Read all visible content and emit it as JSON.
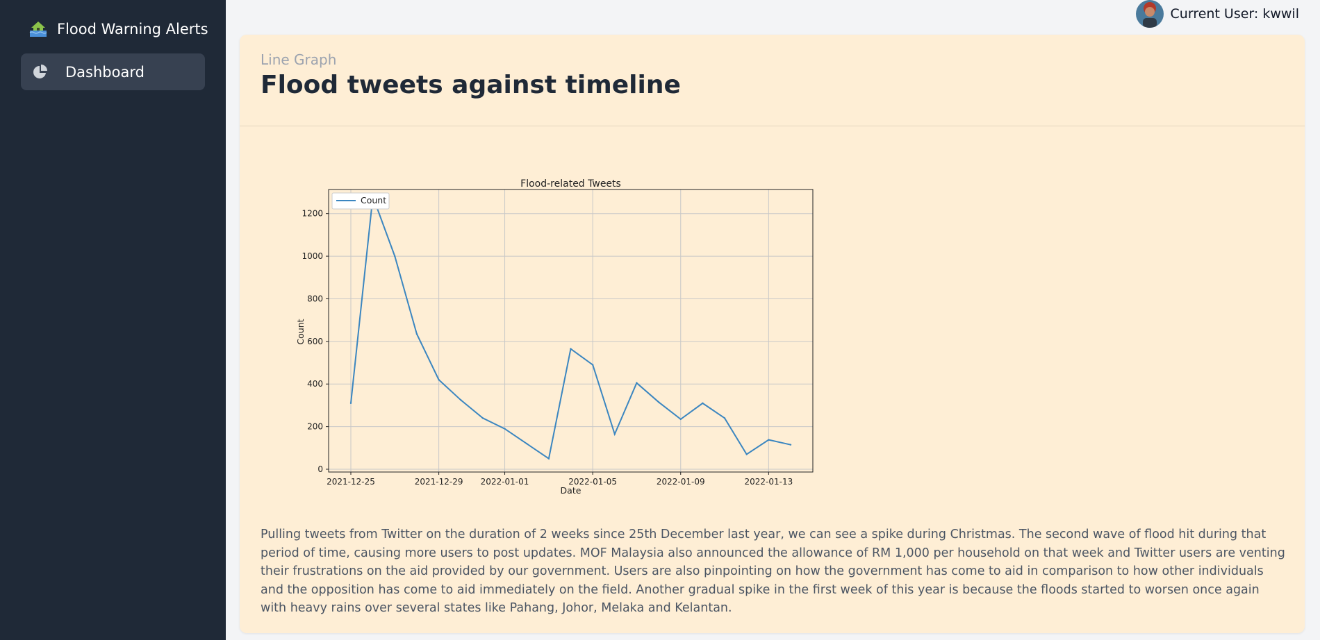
{
  "sidebar": {
    "brand": {
      "icon": "house-flood-icon",
      "title": "Flood Warning Alerts"
    },
    "items": [
      {
        "icon": "pie-chart-icon",
        "label": "Dashboard",
        "active": true
      }
    ]
  },
  "header": {
    "user_label": "Current User: kwwil",
    "avatar": "user-avatar"
  },
  "card": {
    "subtitle": "Line Graph",
    "title": "Flood tweets against timeline",
    "description": "Pulling tweets from Twitter on the duration of 2 weeks since 25th December last year, we can see a spike during Christmas. The second wave of flood hit during that period of time, causing more users to post updates. MOF Malaysia also announced the allowance of RM 1,000 per household on that week and Twitter users are venting their frustrations on the aid provided by our government. Users are also pinpointing on how the government has come to aid in comparison to how other individuals and the opposition has come to aid immediately on the field. Another gradual spike in the first week of this year is because the floods started to worsen once again with heavy rains over several states like Pahang, Johor, Melaka and Kelantan."
  },
  "colors": {
    "sidebar_bg": "#1f2937",
    "card_bg": "#feeed5",
    "line": "#3b86c0"
  },
  "chart_data": {
    "type": "line",
    "title": "Flood-related Tweets",
    "xlabel": "Date",
    "ylabel": "Count",
    "legend": "top-left",
    "grid": true,
    "ylim": [
      0,
      1300
    ],
    "yticks": [
      0,
      200,
      400,
      600,
      800,
      1000,
      1200
    ],
    "xticks": [
      "2021-12-25",
      "2021-12-29",
      "2022-01-01",
      "2022-01-05",
      "2022-01-09",
      "2022-01-13"
    ],
    "x": [
      "2021-12-25",
      "2021-12-26",
      "2021-12-27",
      "2021-12-28",
      "2021-12-29",
      "2021-12-30",
      "2021-12-31",
      "2022-01-01",
      "2022-01-02",
      "2022-01-03",
      "2022-01-04",
      "2022-01-05",
      "2022-01-06",
      "2022-01-07",
      "2022-01-08",
      "2022-01-09",
      "2022-01-10",
      "2022-01-11",
      "2022-01-12",
      "2022-01-13",
      "2022-01-14"
    ],
    "series": [
      {
        "name": "Count",
        "values": [
          310,
          1280,
          1000,
          635,
          420,
          325,
          240,
          190,
          120,
          50,
          565,
          490,
          165,
          405,
          315,
          235,
          310,
          240,
          70,
          138,
          115
        ]
      }
    ]
  }
}
